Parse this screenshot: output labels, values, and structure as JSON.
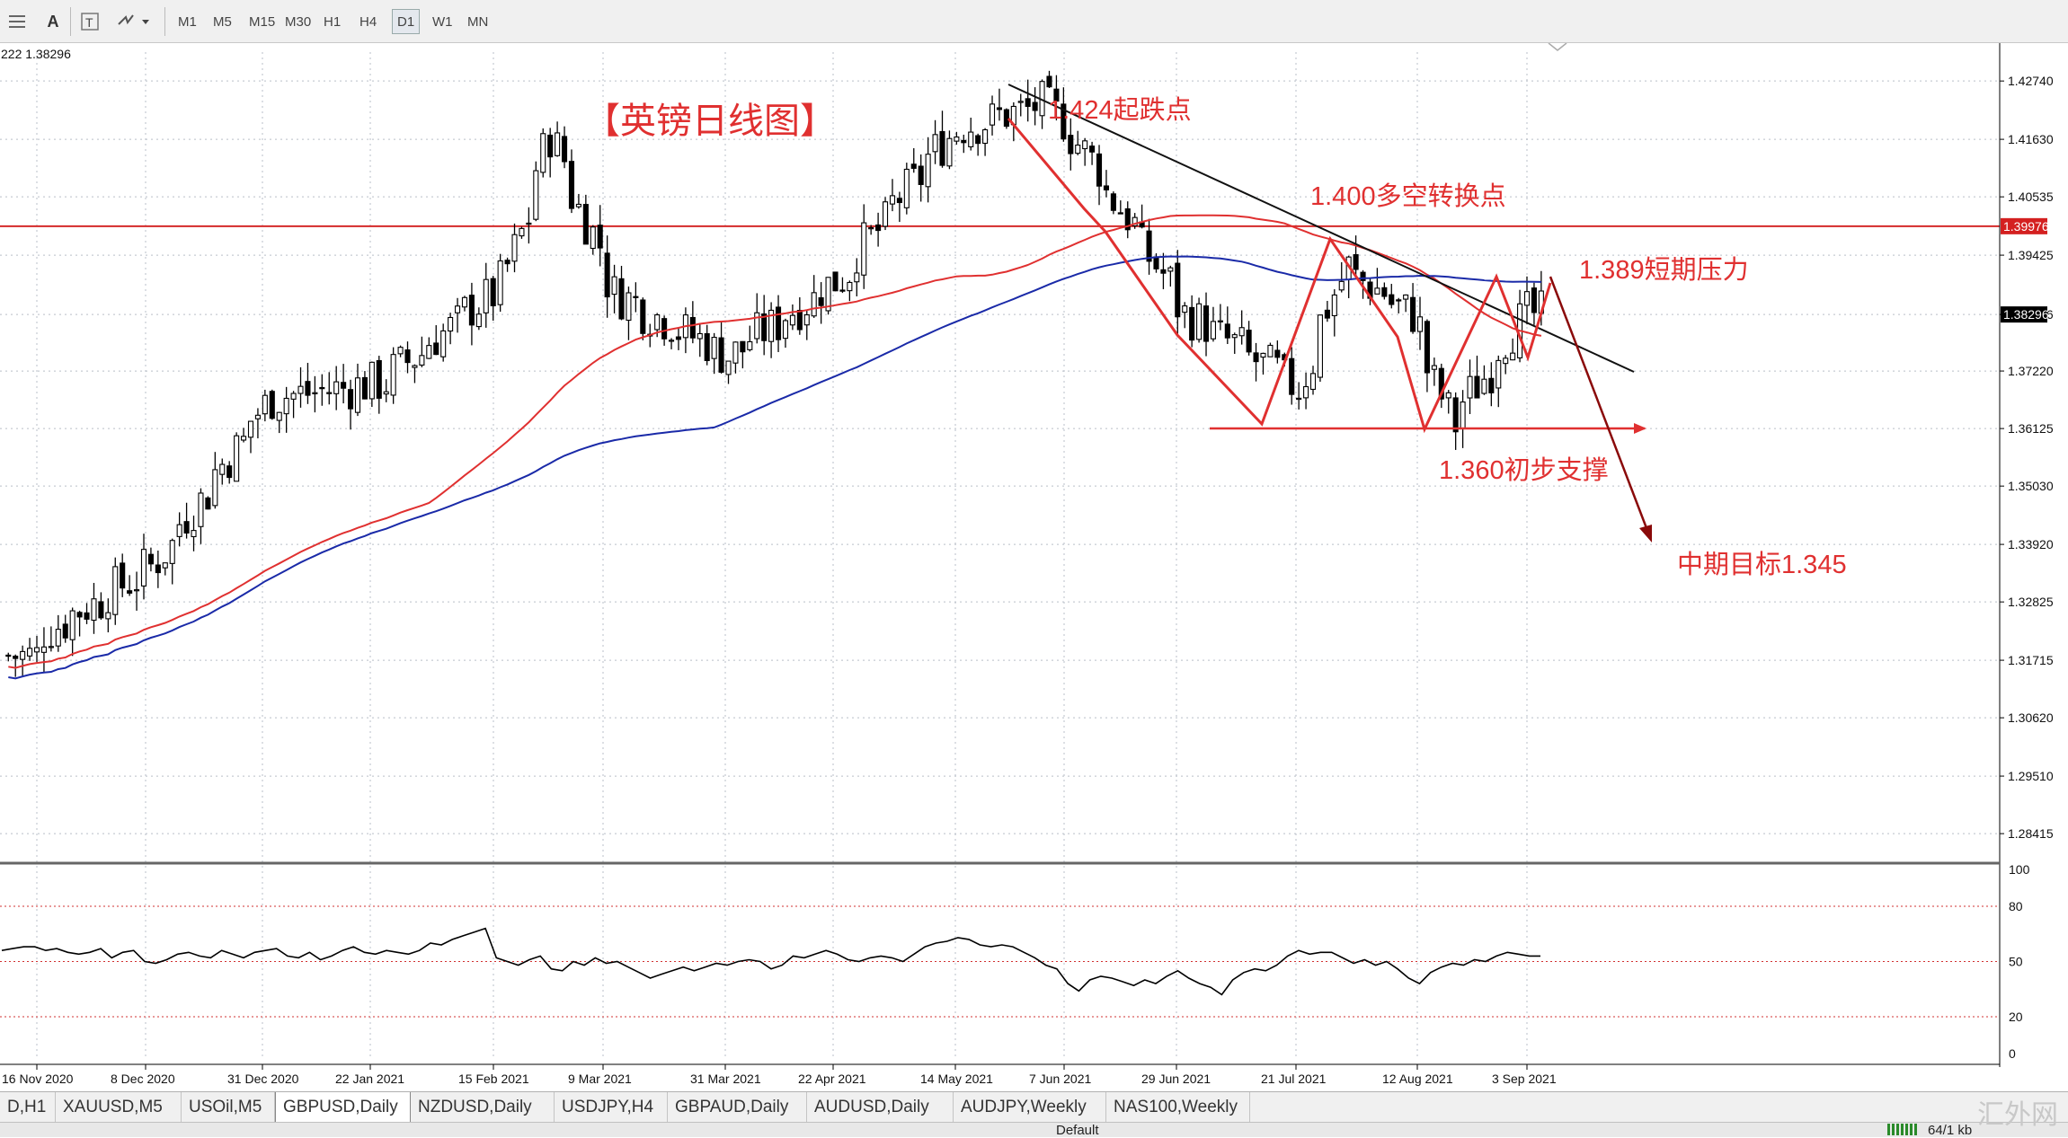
{
  "toolbar": {
    "timeframes": [
      "M1",
      "M5",
      "M15",
      "M30",
      "H1",
      "H4",
      "D1",
      "W1",
      "MN"
    ],
    "active_timeframe": "D1"
  },
  "chart_data": {
    "type": "candlestick",
    "title": "【英镑日线图】",
    "info_text": "222 1.38296",
    "price_axis": {
      "labels": [
        "1.42740",
        "1.41630",
        "1.40535",
        "1.39425",
        "1.38296",
        "1.37220",
        "1.36125",
        "1.35030",
        "1.33920",
        "1.32825",
        "1.31715",
        "1.30620",
        "1.29510",
        "1.28415"
      ],
      "range": [
        1.2787,
        1.4329
      ]
    },
    "date_axis": {
      "labels": [
        "16 Nov 2020",
        "8 Dec 2020",
        "31 Dec 2020",
        "22 Jan 2021",
        "15 Feb 2021",
        "9 Mar 2021",
        "31 Mar 2021",
        "22 Apr 2021",
        "14 May 2021",
        "7 Jun 2021",
        "29 Jun 2021",
        "21 Jul 2021",
        "12 Aug 2021",
        "3 Sep 2021"
      ]
    },
    "current_price": "1.38296",
    "marked_level": "1.39976",
    "annotations": [
      "1.424起跌点",
      "1.400多空转换点",
      "1.389短期压力",
      "1.360初步支撑",
      "中期目标1.345"
    ],
    "ohlc_anchors": [
      {
        "date": "16 Nov 2020",
        "close": 1.322
      },
      {
        "date": "8 Dec 2020",
        "close": 1.335
      },
      {
        "date": "31 Dec 2020",
        "close": 1.367
      },
      {
        "date": "22 Jan 2021",
        "close": 1.37
      },
      {
        "date": "15 Feb 2021",
        "close": 1.389
      },
      {
        "date": "24 Feb 2021",
        "close": 1.417
      },
      {
        "date": "9 Mar 2021",
        "close": 1.387
      },
      {
        "date": "31 Mar 2021",
        "close": 1.375
      },
      {
        "date": "22 Apr 2021",
        "close": 1.39
      },
      {
        "date": "14 May 2021",
        "close": 1.418
      },
      {
        "date": "1 Jun 2021",
        "close": 1.423
      },
      {
        "date": "7 Jun 2021",
        "close": 1.417
      },
      {
        "date": "29 Jun 2021",
        "close": 1.383
      },
      {
        "date": "21 Jul 2021",
        "close": 1.369
      },
      {
        "date": "30 Jul 2021",
        "close": 1.392
      },
      {
        "date": "12 Aug 2021",
        "close": 1.383
      },
      {
        "date": "20 Aug 2021",
        "close": 1.362
      },
      {
        "date": "3 Sep 2021",
        "close": 1.383
      },
      {
        "date": "9 Sep 2021",
        "close": 1.383
      }
    ],
    "rsi": {
      "levels": [
        80,
        50,
        20
      ],
      "axis_labels": [
        "100",
        "80",
        "50",
        "20",
        "0"
      ],
      "values": [
        56,
        57,
        58,
        58,
        56,
        57,
        55,
        54,
        55,
        57,
        52,
        55,
        56,
        50,
        49,
        51,
        54,
        55,
        53,
        52,
        56,
        54,
        52,
        55,
        56,
        57,
        53,
        52,
        55,
        51,
        53,
        56,
        58,
        55,
        54,
        56,
        55,
        54,
        56,
        60,
        59,
        62,
        64,
        66,
        68,
        52,
        50,
        48,
        51,
        53,
        46,
        45,
        50,
        48,
        52,
        49,
        50,
        47,
        44,
        41,
        43,
        45,
        47,
        45,
        47,
        49,
        48,
        50,
        51,
        50,
        46,
        48,
        53,
        52,
        54,
        56,
        54,
        51,
        50,
        52,
        53,
        52,
        50,
        54,
        58,
        60,
        61,
        63,
        62,
        59,
        58,
        59,
        58,
        55,
        52,
        48,
        46,
        38,
        34,
        40,
        42,
        41,
        39,
        37,
        40,
        38,
        42,
        45,
        41,
        38,
        36,
        32,
        40,
        44,
        46,
        45,
        48,
        53,
        56,
        54,
        55,
        55,
        52,
        49,
        51,
        48,
        50,
        46,
        41,
        38,
        44,
        47,
        49,
        48,
        51,
        50,
        53,
        55,
        54,
        53,
        53
      ]
    }
  },
  "tabs": [
    "D,H1",
    "XAUUSD,M5",
    "USOil,M5",
    "GBPUSD,Daily",
    "NZDUSD,Daily",
    "USDJPY,H4",
    "GBPAUD,Daily",
    "AUDUSD,Daily",
    "AUDJPY,Weekly",
    "NAS100,Weekly"
  ],
  "active_tab": "GBPUSD,Daily",
  "statusbar": {
    "profile": "Default",
    "traffic": "64/1 kb"
  },
  "watermark": "汇外网",
  "colors": {
    "level_line": "#d42a2a",
    "annotation": "#e03030",
    "ma_red": "#e03030",
    "ma_blue": "#1a2aa8",
    "trend_black": "#111111",
    "arrow_dark": "#8a0a0a",
    "price_marker": "#d42020"
  }
}
